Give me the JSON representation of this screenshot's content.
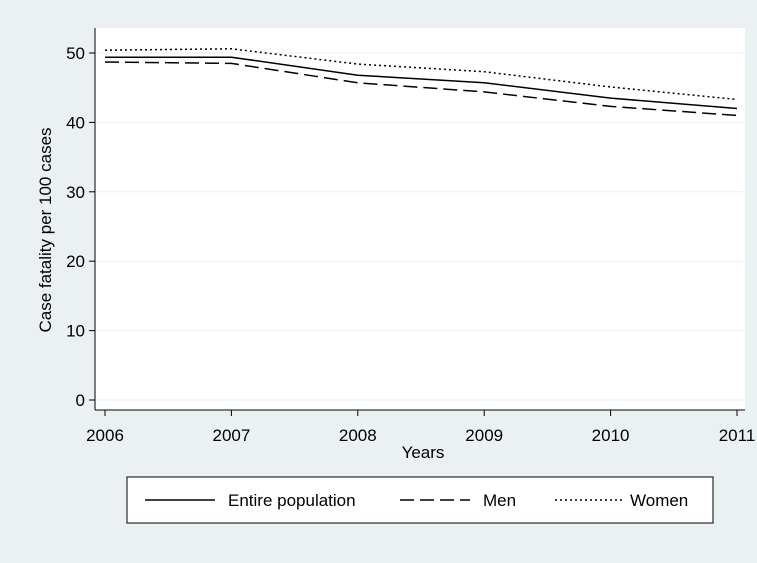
{
  "chart_data": {
    "type": "line",
    "xlabel": "Years",
    "ylabel": "Case fatality per 100 cases",
    "x": [
      2006,
      2007,
      2008,
      2009,
      2010,
      2011
    ],
    "xlim": [
      2006,
      2011
    ],
    "ylim": [
      0,
      50
    ],
    "xticks": [
      "2006",
      "2007",
      "2008",
      "2009",
      "2010",
      "2011"
    ],
    "yticks": [
      "0",
      "10",
      "20",
      "30",
      "40",
      "50"
    ],
    "grid": true,
    "legend_position": "bottom",
    "series": [
      {
        "name": "Entire population",
        "values": [
          49.4,
          49.4,
          46.8,
          45.7,
          43.5,
          42.0
        ],
        "dash": "solid"
      },
      {
        "name": "Men",
        "values": [
          48.7,
          48.5,
          45.7,
          44.4,
          42.3,
          41.0
        ],
        "dash": "dashed"
      },
      {
        "name": "Women",
        "values": [
          50.4,
          50.6,
          48.4,
          47.3,
          45.1,
          43.3
        ],
        "dash": "dotted"
      }
    ],
    "colors": {
      "background": "#ebf1f3",
      "plot_area": "#ffffff",
      "grid": "#eaf2f3",
      "line": "#000000"
    }
  }
}
